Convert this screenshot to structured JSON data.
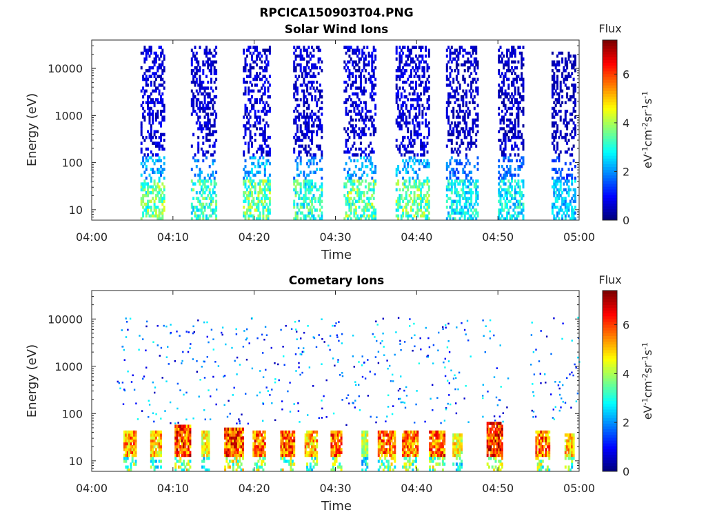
{
  "figure": {
    "title": "RPCICA150903T04.PNG"
  },
  "colors": {
    "axis": "#262626",
    "colormap": "jet",
    "background": "#ffffff"
  },
  "chart_data": [
    {
      "type": "heatmap",
      "title": "Solar Wind Ions",
      "xlabel": "Time",
      "ylabel": "Energy (eV)",
      "x_ticks": [
        "04:00",
        "04:10",
        "04:20",
        "04:30",
        "04:40",
        "04:50",
        "05:00"
      ],
      "xlim_minutes": [
        0,
        60
      ],
      "y_ticks": [
        "10",
        "100",
        "1000",
        "10000"
      ],
      "y_scale": "log",
      "ylim": [
        6,
        40000
      ],
      "colorbar": {
        "title": "Flux",
        "label": "eV-1cm-2sr-1s-1",
        "ticks": [
          "0",
          "2",
          "4",
          "6"
        ],
        "range": [
          0,
          7.4
        ]
      },
      "bursts": [
        {
          "start": 6.0,
          "end": 8.8,
          "emax": 30000,
          "peak_flux": 4.5
        },
        {
          "start": 12.2,
          "end": 15.2,
          "emax": 30000,
          "peak_flux": 4.0
        },
        {
          "start": 18.6,
          "end": 21.8,
          "emax": 30000,
          "peak_flux": 4.5
        },
        {
          "start": 24.8,
          "end": 28.2,
          "emax": 30000,
          "peak_flux": 4.0
        },
        {
          "start": 31.0,
          "end": 35.0,
          "emax": 30000,
          "peak_flux": 4.5
        },
        {
          "start": 37.4,
          "end": 41.5,
          "emax": 30000,
          "peak_flux": 4.5
        },
        {
          "start": 43.6,
          "end": 47.5,
          "emax": 30000,
          "peak_flux": 3.5
        },
        {
          "start": 50.0,
          "end": 53.2,
          "emax": 30000,
          "peak_flux": 3.5
        },
        {
          "start": 56.6,
          "end": 59.6,
          "emax": 20000,
          "peak_flux": 3.0
        }
      ]
    },
    {
      "type": "heatmap",
      "title": "Cometary Ions",
      "xlabel": "Time",
      "ylabel": "Energy (eV)",
      "x_ticks": [
        "04:00",
        "04:10",
        "04:20",
        "04:30",
        "04:40",
        "04:50",
        "05:00"
      ],
      "xlim_minutes": [
        0,
        60
      ],
      "y_ticks": [
        "10",
        "100",
        "1000",
        "10000"
      ],
      "y_scale": "log",
      "ylim": [
        6,
        40000
      ],
      "colorbar": {
        "title": "Flux",
        "label": "eV-1cm-2sr-1s-1",
        "ticks": [
          "0",
          "2",
          "4",
          "6"
        ],
        "range": [
          0,
          7.4
        ]
      },
      "bursts": [
        {
          "start": 3.9,
          "end": 5.4,
          "emax": 40,
          "peak_flux": 6.5
        },
        {
          "start": 7.2,
          "end": 8.4,
          "emax": 40,
          "peak_flux": 6.0
        },
        {
          "start": 10.2,
          "end": 12.0,
          "emax": 55,
          "peak_flux": 7.2
        },
        {
          "start": 13.5,
          "end": 14.4,
          "emax": 40,
          "peak_flux": 5.5
        },
        {
          "start": 16.3,
          "end": 18.6,
          "emax": 50,
          "peak_flux": 7.2
        },
        {
          "start": 19.8,
          "end": 21.2,
          "emax": 40,
          "peak_flux": 6.8
        },
        {
          "start": 23.2,
          "end": 24.8,
          "emax": 40,
          "peak_flux": 7.0
        },
        {
          "start": 26.2,
          "end": 27.6,
          "emax": 40,
          "peak_flux": 6.2
        },
        {
          "start": 29.4,
          "end": 30.6,
          "emax": 40,
          "peak_flux": 6.8
        },
        {
          "start": 33.2,
          "end": 34.0,
          "emax": 40,
          "peak_flux": 5.0
        },
        {
          "start": 35.2,
          "end": 37.4,
          "emax": 40,
          "peak_flux": 6.8
        },
        {
          "start": 38.2,
          "end": 40.2,
          "emax": 40,
          "peak_flux": 6.8
        },
        {
          "start": 41.5,
          "end": 43.4,
          "emax": 40,
          "peak_flux": 7.0
        },
        {
          "start": 44.4,
          "end": 45.6,
          "emax": 35,
          "peak_flux": 5.5
        },
        {
          "start": 48.6,
          "end": 50.6,
          "emax": 60,
          "peak_flux": 7.4
        },
        {
          "start": 54.6,
          "end": 56.4,
          "emax": 40,
          "peak_flux": 6.8
        },
        {
          "start": 58.2,
          "end": 59.4,
          "emax": 35,
          "peak_flux": 6.0
        }
      ]
    }
  ]
}
